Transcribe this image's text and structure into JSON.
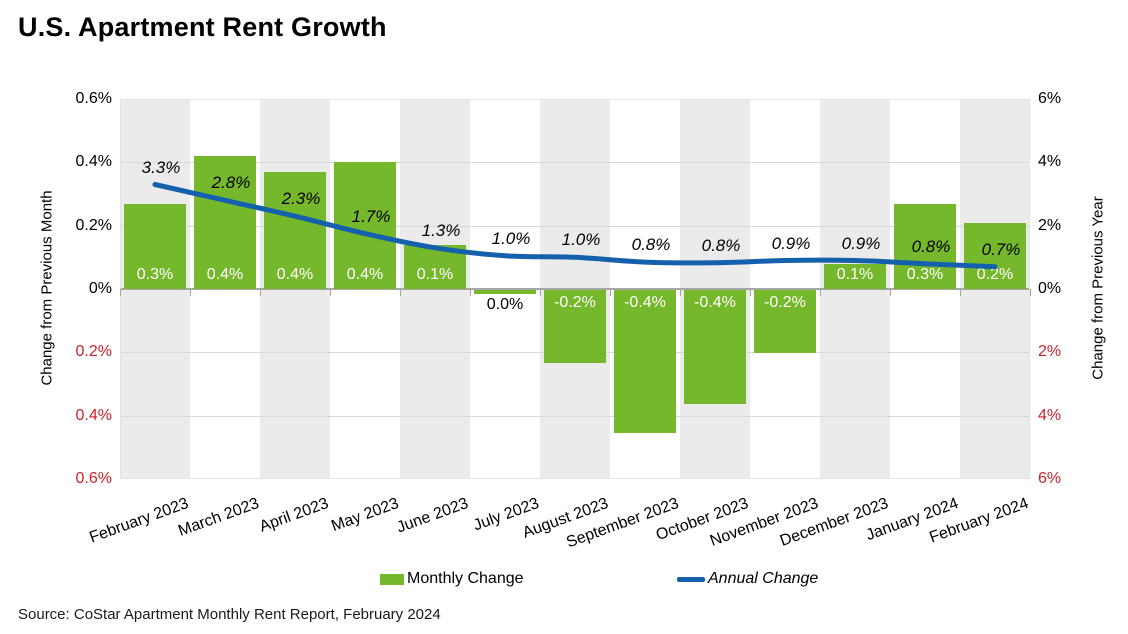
{
  "page": {
    "title": "U.S. Apartment Rent Growth",
    "source": "Source: CoStar Apartment Monthly Rent Report, February 2024"
  },
  "legend": {
    "monthly": "Monthly Change",
    "annual": "Annual Change"
  },
  "colors": {
    "bar_green": "#76b82b",
    "line_blue": "#1560ad",
    "negative_axis_red": "#cc2128",
    "band_gray": "#ebebeb",
    "gridline_gray": "#d9d9d9",
    "zero_line_gray": "#a6a6a6",
    "bar_label_white": "#ffffff"
  },
  "chart_data": {
    "type": "combo",
    "categories": [
      "February 2023",
      "March 2023",
      "April 2023",
      "May 2023",
      "June 2023",
      "July 2023",
      "August 2023",
      "September 2023",
      "October 2023",
      "November 2023",
      "December 2023",
      "January 2024",
      "February 2024"
    ],
    "series": [
      {
        "name": "Monthly Change",
        "type": "bar",
        "axis": "left",
        "values": [
          0.3,
          0.4,
          0.4,
          0.4,
          0.1,
          0.0,
          -0.2,
          -0.4,
          -0.4,
          -0.2,
          0.1,
          0.3,
          0.2
        ],
        "labels": [
          "0.3%",
          "0.4%",
          "0.4%",
          "0.4%",
          "0.1%",
          "0.0%",
          "-0.2%",
          "-0.4%",
          "-0.4%",
          "-0.2%",
          "0.1%",
          "0.3%",
          "0.2%"
        ],
        "render_values": [
          0.27,
          0.42,
          0.37,
          0.4,
          0.14,
          -0.012,
          -0.23,
          -0.45,
          -0.36,
          -0.2,
          0.08,
          0.27,
          0.21
        ],
        "color": "#76b82b"
      },
      {
        "name": "Annual Change",
        "type": "line",
        "axis": "right",
        "values": [
          3.3,
          2.8,
          2.3,
          1.7,
          1.3,
          1.0,
          1.0,
          0.8,
          0.8,
          0.9,
          0.9,
          0.8,
          0.7
        ],
        "labels": [
          "3.3%",
          "2.8%",
          "2.3%",
          "1.7%",
          "1.3%",
          "1.0%",
          "1.0%",
          "0.8%",
          "0.8%",
          "0.9%",
          "0.9%",
          "0.8%",
          "0.7%"
        ],
        "render_values": [
          3.3,
          2.8,
          2.3,
          1.75,
          1.3,
          1.05,
          1.0,
          0.85,
          0.83,
          0.9,
          0.9,
          0.8,
          0.7
        ],
        "color": "#1560ad"
      }
    ],
    "left_axis": {
      "title": "Change from Previous Month",
      "ticks": [
        "0.6%",
        "0.4%",
        "0.2%",
        "0%",
        "0.2%",
        "0.4%",
        "0.6%"
      ],
      "range": [
        -0.6,
        0.6
      ],
      "negative_ticks_red": true
    },
    "right_axis": {
      "title": "Change from Previous Year",
      "ticks": [
        "6%",
        "4%",
        "2%",
        "0%",
        "2%",
        "4%",
        "6%"
      ],
      "range": [
        -6,
        6
      ],
      "negative_ticks_red": true
    },
    "grid": true,
    "background_bands": "alternating columns gray/white starting gray",
    "legend_position": "bottom"
  }
}
